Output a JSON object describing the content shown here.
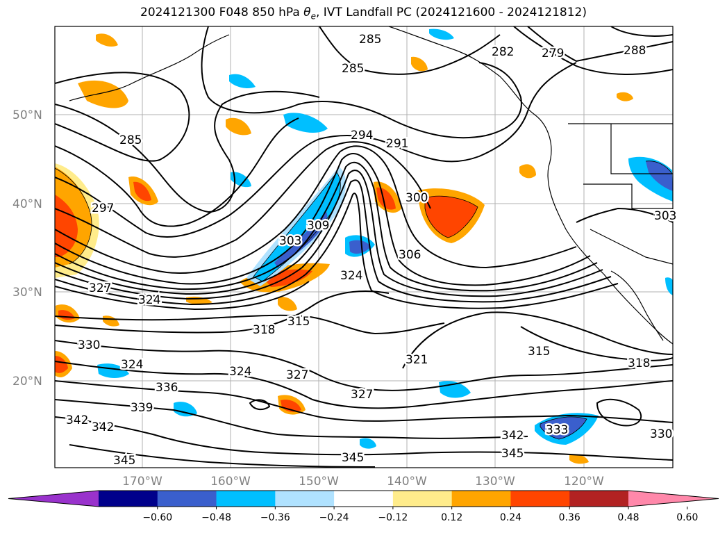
{
  "title_prefix": "2024121300 F048 850 hPa ",
  "title_var": "θ",
  "title_sub": "e",
  "title_suffix": ", IVT Landfall PC (2024121600 - 2024121812)",
  "lat_ticks": [
    "50°N",
    "40°N",
    "30°N",
    "20°N"
  ],
  "lon_ticks": [
    "170°W",
    "160°W",
    "150°W",
    "140°W",
    "130°W",
    "120°W"
  ],
  "colorbar": {
    "ticks": [
      "−0.60",
      "−0.48",
      "−0.36",
      "−0.24",
      "−0.12",
      "0.12",
      "0.24",
      "0.36",
      "0.48",
      "0.60"
    ],
    "colors": [
      "#9932CC",
      "#00008B",
      "#3A5FCD",
      "#00BFFF",
      "#B0E2FF",
      "#FFFFFF",
      "#FFEC8B",
      "#FFA500",
      "#FF4500",
      "#B22222",
      "#FF88AA"
    ]
  },
  "contour_labels": [
    {
      "text": "285"
    },
    {
      "text": "285"
    },
    {
      "text": "282"
    },
    {
      "text": "279"
    },
    {
      "text": "288"
    },
    {
      "text": "285"
    },
    {
      "text": "294"
    },
    {
      "text": "291"
    },
    {
      "text": "297"
    },
    {
      "text": "303"
    },
    {
      "text": "309"
    },
    {
      "text": "300"
    },
    {
      "text": "306"
    },
    {
      "text": "303"
    },
    {
      "text": "324"
    },
    {
      "text": "327"
    },
    {
      "text": "324"
    },
    {
      "text": "318"
    },
    {
      "text": "315"
    },
    {
      "text": "321"
    },
    {
      "text": "315"
    },
    {
      "text": "318"
    },
    {
      "text": "330"
    },
    {
      "text": "324"
    },
    {
      "text": "327"
    },
    {
      "text": "324"
    },
    {
      "text": "336"
    },
    {
      "text": "327"
    },
    {
      "text": "339"
    },
    {
      "text": "342"
    },
    {
      "text": "342"
    },
    {
      "text": "342"
    },
    {
      "text": "333"
    },
    {
      "text": "345"
    },
    {
      "text": "345"
    },
    {
      "text": "345"
    },
    {
      "text": "330"
    }
  ]
}
